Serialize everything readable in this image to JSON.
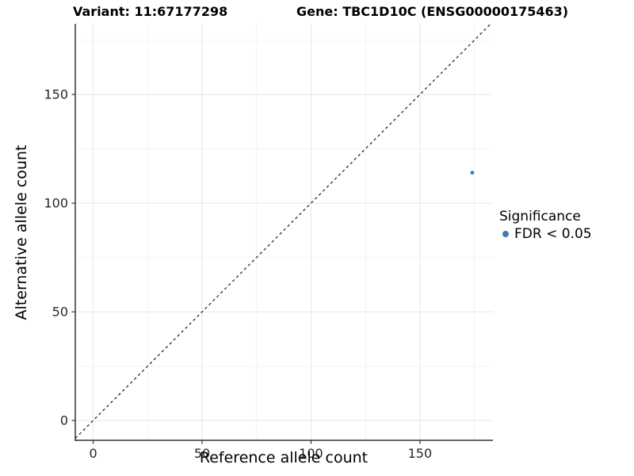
{
  "chart_data": {
    "type": "scatter",
    "title_variant": "Variant: 11:67177298",
    "title_gene": "Gene: TBC1D10C (ENSG00000175463)",
    "xlabel": "Reference allele count",
    "ylabel": "Alternative allele count",
    "xlim": [
      -8.2,
      183.5
    ],
    "ylim": [
      -9.1,
      182.5
    ],
    "x_ticks": [
      0,
      50,
      100,
      150
    ],
    "y_ticks": [
      0,
      50,
      100,
      150
    ],
    "x_minor": [
      25,
      75,
      125,
      175
    ],
    "y_minor": [
      25,
      75,
      125,
      175
    ],
    "grid": true,
    "reference_line": "dashed identity line y = x",
    "series": [
      {
        "name": "FDR < 0.05",
        "color": "#4678a8",
        "points": [
          {
            "x": 174,
            "y": 114
          }
        ]
      }
    ],
    "legend": {
      "title": "Significance",
      "position": "right",
      "items": [
        {
          "label": "FDR < 0.05",
          "color": "#4678a8"
        }
      ]
    },
    "colors": {
      "axis": "#333333",
      "tick_text": "#262626",
      "grid_major": "#e8e8e8",
      "grid_minor": "#f3f3f3",
      "dashed_line": "#1a1a1a",
      "background": "#ffffff"
    }
  }
}
